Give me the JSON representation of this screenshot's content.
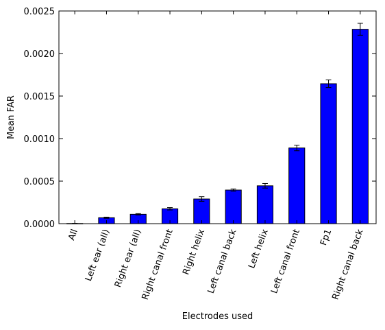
{
  "chart_data": {
    "type": "bar",
    "title": "",
    "xlabel": "Electrodes used",
    "ylabel": "Mean FAR",
    "ylim": [
      0,
      0.0025
    ],
    "yticks": [
      "0.0000",
      "0.0005",
      "0.0010",
      "0.0015",
      "0.0020",
      "0.0025"
    ],
    "grid": false,
    "bar_color": "#0000ff",
    "categories": [
      "All",
      "Left ear (all)",
      "Right ear (all)",
      "Right canal front",
      "Right helix",
      "Left canal back",
      "Left helix",
      "Left canal front",
      "Fp1",
      "Right canal back"
    ],
    "values": [
      2e-06,
      7e-05,
      0.00011,
      0.000175,
      0.00029,
      0.000395,
      0.000445,
      0.00089,
      0.001645,
      0.002285
    ],
    "errors": [
      1e-06,
      7e-06,
      8e-06,
      1.4e-05,
      2.7e-05,
      1.3e-05,
      2.7e-05,
      3.3e-05,
      4.5e-05,
      7e-05
    ]
  }
}
